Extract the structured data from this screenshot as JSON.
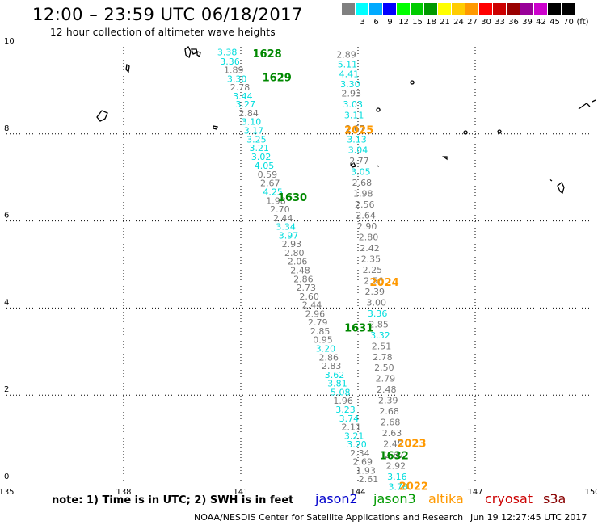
{
  "title": "12:00 – 23:59 UTC 06/18/2017",
  "subtitle": "12 hour collection of altimeter wave heights",
  "color_scale": {
    "unit": "(ft)",
    "bins": [
      {
        "label": "",
        "color": "#808080"
      },
      {
        "label": "3",
        "color": "#00ffff"
      },
      {
        "label": "6",
        "color": "#00aaff"
      },
      {
        "label": "9",
        "color": "#0000ff"
      },
      {
        "label": "12",
        "color": "#00ff00"
      },
      {
        "label": "15",
        "color": "#00cc00"
      },
      {
        "label": "18",
        "color": "#009900"
      },
      {
        "label": "21",
        "color": "#ffff00"
      },
      {
        "label": "24",
        "color": "#ffcc00"
      },
      {
        "label": "27",
        "color": "#ff9900"
      },
      {
        "label": "30",
        "color": "#ff0000"
      },
      {
        "label": "33",
        "color": "#cc0000"
      },
      {
        "label": "36",
        "color": "#990000"
      },
      {
        "label": "39",
        "color": "#990099"
      },
      {
        "label": "42",
        "color": "#cc00cc"
      },
      {
        "label": "45",
        "color": "#000000"
      },
      {
        "label": "70",
        "color": "#000000"
      }
    ]
  },
  "axes": {
    "lon_ticks": [
      "135",
      "138",
      "141",
      "144",
      "147",
      "150"
    ],
    "lat_ticks": [
      "0",
      "2",
      "4",
      "6",
      "8",
      "10"
    ],
    "lon_range": [
      135,
      150
    ],
    "lat_range": [
      0,
      10
    ]
  },
  "pass_labels": [
    {
      "text": "1628",
      "lon": 141.3,
      "lat": 9.85,
      "color": "#008800"
    },
    {
      "text": "1629",
      "lon": 141.55,
      "lat": 9.3,
      "color": "#008800"
    },
    {
      "text": "2025",
      "lon": 143.65,
      "lat": 8.1,
      "color": "#ff9900"
    },
    {
      "text": "1630",
      "lon": 141.95,
      "lat": 6.55,
      "color": "#008800"
    },
    {
      "text": "2024",
      "lon": 144.3,
      "lat": 4.6,
      "color": "#ff9900"
    },
    {
      "text": "1631",
      "lon": 143.65,
      "lat": 3.55,
      "color": "#008800"
    },
    {
      "text": "2023",
      "lon": 145.0,
      "lat": 0.9,
      "color": "#ff9900"
    },
    {
      "text": "1632",
      "lon": 144.55,
      "lat": 0.62,
      "color": "#008800"
    },
    {
      "text": "2022",
      "lon": 145.05,
      "lat": -0.08,
      "color": "#ff9900"
    }
  ],
  "track_values": [
    {
      "v": "3.38",
      "lon": 140.65,
      "lat": 9.88,
      "c": "#00dddd"
    },
    {
      "v": "3.36",
      "lon": 140.72,
      "lat": 9.67,
      "c": "#00dddd"
    },
    {
      "v": "1.89",
      "lon": 140.82,
      "lat": 9.47,
      "c": "#777777"
    },
    {
      "v": "3.30",
      "lon": 140.9,
      "lat": 9.27,
      "c": "#00dddd"
    },
    {
      "v": "2.78",
      "lon": 140.98,
      "lat": 9.07,
      "c": "#777777"
    },
    {
      "v": "3.44",
      "lon": 141.05,
      "lat": 8.87,
      "c": "#00dddd"
    },
    {
      "v": "3.27",
      "lon": 141.12,
      "lat": 8.68,
      "c": "#00dddd"
    },
    {
      "v": "2.84",
      "lon": 141.2,
      "lat": 8.48,
      "c": "#777777"
    },
    {
      "v": "3.10",
      "lon": 141.27,
      "lat": 8.28,
      "c": "#00dddd"
    },
    {
      "v": "3.17",
      "lon": 141.33,
      "lat": 8.08,
      "c": "#00dddd"
    },
    {
      "v": "3.25",
      "lon": 141.4,
      "lat": 7.88,
      "c": "#00dddd"
    },
    {
      "v": "3.21",
      "lon": 141.47,
      "lat": 7.68,
      "c": "#00dddd"
    },
    {
      "v": "3.02",
      "lon": 141.52,
      "lat": 7.48,
      "c": "#00dddd"
    },
    {
      "v": "4.05",
      "lon": 141.6,
      "lat": 7.27,
      "c": "#00dddd"
    },
    {
      "v": "0.59",
      "lon": 141.68,
      "lat": 7.07,
      "c": "#777777"
    },
    {
      "v": "2.67",
      "lon": 141.75,
      "lat": 6.87,
      "c": "#777777"
    },
    {
      "v": "4.25",
      "lon": 141.82,
      "lat": 6.67,
      "c": "#00dddd"
    },
    {
      "v": "1.98",
      "lon": 141.9,
      "lat": 6.47,
      "c": "#777777"
    },
    {
      "v": "2.70",
      "lon": 142.0,
      "lat": 6.27,
      "c": "#777777"
    },
    {
      "v": "2.44",
      "lon": 142.08,
      "lat": 6.07,
      "c": "#777777"
    },
    {
      "v": "3.34",
      "lon": 142.15,
      "lat": 5.87,
      "c": "#00dddd"
    },
    {
      "v": "3.97",
      "lon": 142.22,
      "lat": 5.67,
      "c": "#00dddd"
    },
    {
      "v": "2.93",
      "lon": 142.3,
      "lat": 5.47,
      "c": "#777777"
    },
    {
      "v": "2.80",
      "lon": 142.37,
      "lat": 5.27,
      "c": "#777777"
    },
    {
      "v": "2.06",
      "lon": 142.45,
      "lat": 5.07,
      "c": "#777777"
    },
    {
      "v": "2.48",
      "lon": 142.52,
      "lat": 4.87,
      "c": "#777777"
    },
    {
      "v": "2.86",
      "lon": 142.6,
      "lat": 4.67,
      "c": "#777777"
    },
    {
      "v": "2.73",
      "lon": 142.67,
      "lat": 4.47,
      "c": "#777777"
    },
    {
      "v": "2.60",
      "lon": 142.75,
      "lat": 4.27,
      "c": "#777777"
    },
    {
      "v": "2.44",
      "lon": 142.82,
      "lat": 4.07,
      "c": "#777777"
    },
    {
      "v": "2.96",
      "lon": 142.9,
      "lat": 3.87,
      "c": "#777777"
    },
    {
      "v": "2.79",
      "lon": 142.97,
      "lat": 3.67,
      "c": "#777777"
    },
    {
      "v": "2.85",
      "lon": 143.03,
      "lat": 3.47,
      "c": "#777777"
    },
    {
      "v": "0.95",
      "lon": 143.1,
      "lat": 3.27,
      "c": "#777777"
    },
    {
      "v": "3.20",
      "lon": 143.17,
      "lat": 3.07,
      "c": "#00dddd"
    },
    {
      "v": "2.86",
      "lon": 143.25,
      "lat": 2.87,
      "c": "#777777"
    },
    {
      "v": "2.83",
      "lon": 143.32,
      "lat": 2.67,
      "c": "#777777"
    },
    {
      "v": "3.62",
      "lon": 143.4,
      "lat": 2.47,
      "c": "#00dddd"
    },
    {
      "v": "3.81",
      "lon": 143.47,
      "lat": 2.27,
      "c": "#00dddd"
    },
    {
      "v": "5.08",
      "lon": 143.55,
      "lat": 2.07,
      "c": "#00dddd"
    },
    {
      "v": "1.96",
      "lon": 143.62,
      "lat": 1.87,
      "c": "#777777"
    },
    {
      "v": "3.23",
      "lon": 143.68,
      "lat": 1.67,
      "c": "#00dddd"
    },
    {
      "v": "3.74",
      "lon": 143.77,
      "lat": 1.47,
      "c": "#00dddd"
    },
    {
      "v": "2.11",
      "lon": 143.83,
      "lat": 1.27,
      "c": "#777777"
    },
    {
      "v": "3.21",
      "lon": 143.9,
      "lat": 1.07,
      "c": "#00dddd"
    },
    {
      "v": "3.20",
      "lon": 143.97,
      "lat": 0.87,
      "c": "#00dddd"
    },
    {
      "v": "2.34",
      "lon": 144.05,
      "lat": 0.67,
      "c": "#777777"
    },
    {
      "v": "2.69",
      "lon": 144.12,
      "lat": 0.47,
      "c": "#777777"
    },
    {
      "v": "1.93",
      "lon": 144.2,
      "lat": 0.27,
      "c": "#777777"
    },
    {
      "v": "2.61",
      "lon": 144.27,
      "lat": 0.07,
      "c": "#777777"
    },
    {
      "v": "2.89",
      "lon": 143.7,
      "lat": 9.82,
      "c": "#777777"
    },
    {
      "v": "5.11",
      "lon": 143.73,
      "lat": 9.6,
      "c": "#00dddd"
    },
    {
      "v": "4.41",
      "lon": 143.77,
      "lat": 9.38,
      "c": "#00dddd"
    },
    {
      "v": "3.30",
      "lon": 143.8,
      "lat": 9.15,
      "c": "#00dddd"
    },
    {
      "v": "2.93",
      "lon": 143.83,
      "lat": 8.93,
      "c": "#777777"
    },
    {
      "v": "3.03",
      "lon": 143.87,
      "lat": 8.68,
      "c": "#00dddd"
    },
    {
      "v": "3.11",
      "lon": 143.9,
      "lat": 8.43,
      "c": "#00dddd"
    },
    {
      "v": "2.67",
      "lon": 143.93,
      "lat": 8.13,
      "c": "#777777"
    },
    {
      "v": "3.13",
      "lon": 143.97,
      "lat": 7.88,
      "c": "#00dddd"
    },
    {
      "v": "3.04",
      "lon": 144.0,
      "lat": 7.63,
      "c": "#00dddd"
    },
    {
      "v": "2.77",
      "lon": 144.03,
      "lat": 7.38,
      "c": "#777777"
    },
    {
      "v": "3.05",
      "lon": 144.07,
      "lat": 7.13,
      "c": "#00dddd"
    },
    {
      "v": "2.68",
      "lon": 144.1,
      "lat": 6.88,
      "c": "#777777"
    },
    {
      "v": "1.98",
      "lon": 144.13,
      "lat": 6.63,
      "c": "#777777"
    },
    {
      "v": "2.56",
      "lon": 144.17,
      "lat": 6.38,
      "c": "#777777"
    },
    {
      "v": "2.64",
      "lon": 144.2,
      "lat": 6.13,
      "c": "#777777"
    },
    {
      "v": "2.90",
      "lon": 144.23,
      "lat": 5.88,
      "c": "#777777"
    },
    {
      "v": "2.80",
      "lon": 144.27,
      "lat": 5.63,
      "c": "#777777"
    },
    {
      "v": "2.42",
      "lon": 144.3,
      "lat": 5.38,
      "c": "#777777"
    },
    {
      "v": "2.35",
      "lon": 144.33,
      "lat": 5.13,
      "c": "#777777"
    },
    {
      "v": "2.25",
      "lon": 144.37,
      "lat": 4.88,
      "c": "#777777"
    },
    {
      "v": "2.56",
      "lon": 144.4,
      "lat": 4.63,
      "c": "#777777"
    },
    {
      "v": "2.39",
      "lon": 144.43,
      "lat": 4.38,
      "c": "#777777"
    },
    {
      "v": "3.00",
      "lon": 144.47,
      "lat": 4.13,
      "c": "#777777"
    },
    {
      "v": "3.36",
      "lon": 144.5,
      "lat": 3.88,
      "c": "#00dddd"
    },
    {
      "v": "2.85",
      "lon": 144.53,
      "lat": 3.63,
      "c": "#777777"
    },
    {
      "v": "3.32",
      "lon": 144.57,
      "lat": 3.38,
      "c": "#00dddd"
    },
    {
      "v": "2.51",
      "lon": 144.6,
      "lat": 3.13,
      "c": "#777777"
    },
    {
      "v": "2.78",
      "lon": 144.63,
      "lat": 2.88,
      "c": "#777777"
    },
    {
      "v": "2.50",
      "lon": 144.67,
      "lat": 2.63,
      "c": "#777777"
    },
    {
      "v": "2.79",
      "lon": 144.7,
      "lat": 2.38,
      "c": "#777777"
    },
    {
      "v": "2.48",
      "lon": 144.73,
      "lat": 2.13,
      "c": "#777777"
    },
    {
      "v": "2.39",
      "lon": 144.77,
      "lat": 1.88,
      "c": "#777777"
    },
    {
      "v": "2.68",
      "lon": 144.8,
      "lat": 1.63,
      "c": "#777777"
    },
    {
      "v": "2.68",
      "lon": 144.83,
      "lat": 1.38,
      "c": "#777777"
    },
    {
      "v": "2.63",
      "lon": 144.87,
      "lat": 1.13,
      "c": "#777777"
    },
    {
      "v": "2.45",
      "lon": 144.9,
      "lat": 0.88,
      "c": "#777777"
    },
    {
      "v": "2.87",
      "lon": 144.93,
      "lat": 0.63,
      "c": "#777777"
    },
    {
      "v": "2.92",
      "lon": 144.97,
      "lat": 0.38,
      "c": "#777777"
    },
    {
      "v": "3.16",
      "lon": 145.0,
      "lat": 0.13,
      "c": "#00dddd"
    },
    {
      "v": "3.78",
      "lon": 145.03,
      "lat": -0.1,
      "c": "#00dddd"
    }
  ],
  "footer": {
    "note": "note: 1) Time is in UTC; 2) SWH is in feet",
    "missions": [
      {
        "name": "jason2",
        "color": "#0000cc"
      },
      {
        "name": "jason3",
        "color": "#009900"
      },
      {
        "name": "altika",
        "color": "#ff9900"
      },
      {
        "name": "cryosat",
        "color": "#cc0000"
      },
      {
        "name": "s3a",
        "color": "#880000"
      }
    ],
    "credit": "NOAA/NESDIS Center for Satellite Applications and Research",
    "timestamp": "Jun 19 12:27:45 UTC 2017"
  }
}
